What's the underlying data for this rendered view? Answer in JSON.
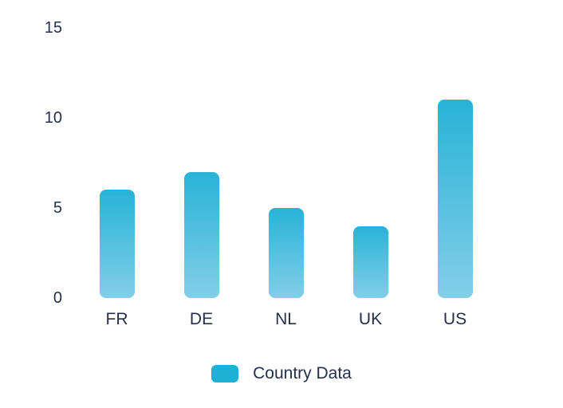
{
  "chart_data": {
    "type": "bar",
    "categories": [
      "FR",
      "DE",
      "NL",
      "UK",
      "US"
    ],
    "values": [
      6,
      7,
      5,
      4,
      11
    ],
    "series": [
      {
        "name": "Country Data",
        "values": [
          6,
          7,
          5,
          4,
          11
        ]
      }
    ],
    "title": "",
    "xlabel": "",
    "ylabel": "",
    "ylim": [
      0,
      15
    ],
    "y_ticks": [
      0,
      5,
      10,
      15
    ],
    "y_tick_labels": [
      "0",
      "5",
      "10",
      "15"
    ],
    "grid": false,
    "legend_position": "bottom",
    "legend_label": "Country Data"
  },
  "colors": {
    "bar_gradient_top": "#28b3d7",
    "bar_gradient_bottom": "#83cee8",
    "legend_swatch": "#1db2d5",
    "label_text": "#25304a",
    "background": "#ffffff"
  }
}
